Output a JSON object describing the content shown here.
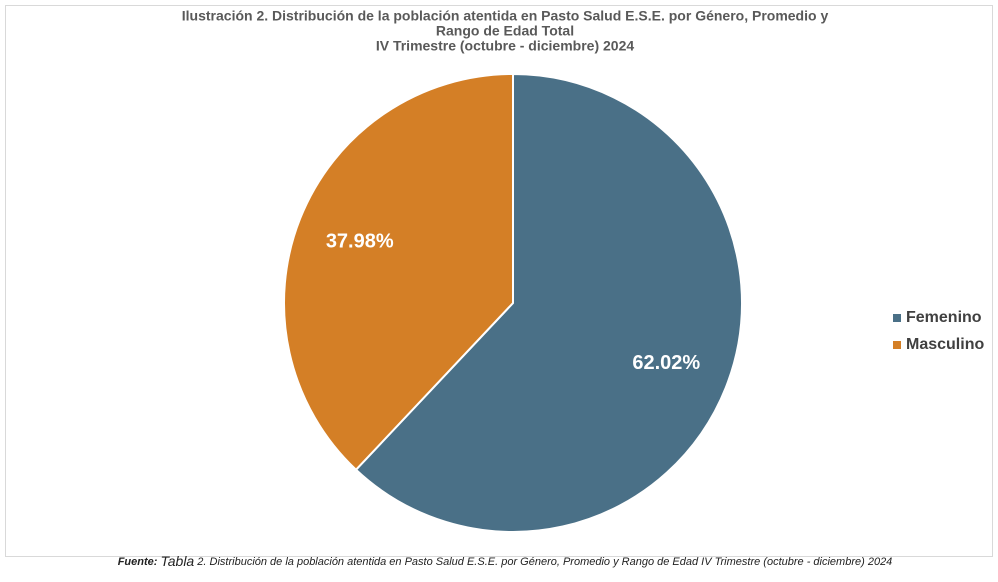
{
  "chart_data": {
    "type": "pie",
    "title": [
      "Ilustración 2. Distribución de la población atentida en Pasto Salud E.S.E. por Género, Promedio y",
      "Rango de Edad Total",
      "IV Trimestre (octubre - diciembre) 2024"
    ],
    "categories": [
      "Femenino",
      "Masculino"
    ],
    "values": [
      62.02,
      37.98
    ],
    "value_labels": [
      "62.02%",
      "37.98%"
    ],
    "colors": [
      "#4a7087",
      "#d47f26"
    ],
    "legend": "right",
    "source": {
      "label": "Fuente:",
      "ref": "Tabla",
      "text": "2. Distribución de la población atentida en Pasto Salud E.S.E. por Género, Promedio y Rango de Edad IV Trimestre (octubre - diciembre) 2024"
    }
  }
}
